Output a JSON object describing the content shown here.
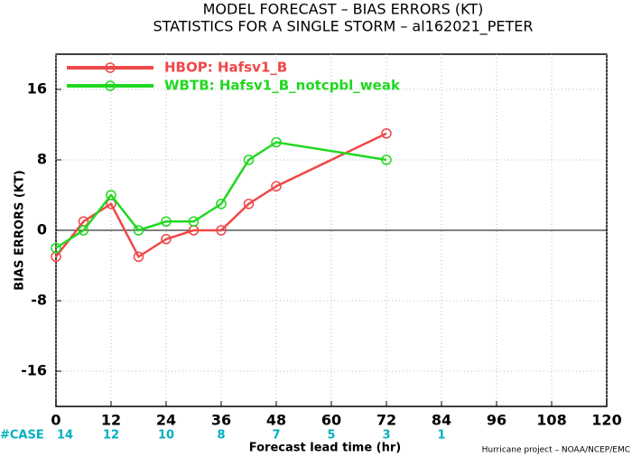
{
  "chart_data": {
    "type": "line",
    "title": "MODEL FORECAST – BIAS ERRORS (KT)",
    "subtitle": "STATISTICS FOR A SINGLE STORM – al162021_PETER",
    "x_label": "Forecast lead time (hr)",
    "y_label": "BIAS ERRORS (KT)",
    "footer": "Hurricane project – NOAA/NCEP/EMC",
    "x": [
      0,
      6,
      12,
      18,
      24,
      30,
      36,
      42,
      48,
      72
    ],
    "series": [
      {
        "name": "HBOP: Hafsv1_B",
        "color": "#f04848",
        "values": [
          -3,
          1,
          3,
          -3,
          -1,
          0,
          0,
          3,
          5,
          11
        ]
      },
      {
        "name": "WBTB: Hafsv1_B_notcpbl_weak",
        "color": "#20d820",
        "values": [
          -2,
          0,
          4,
          0,
          1,
          1,
          3,
          8,
          10,
          8
        ]
      }
    ],
    "case_counts": {
      "label": "#CASE",
      "x": [
        0,
        12,
        24,
        36,
        48,
        60,
        72,
        84
      ],
      "values": [
        14,
        12,
        10,
        8,
        7,
        5,
        3,
        1
      ]
    },
    "xlim": [
      0,
      120
    ],
    "xticks": [
      0,
      12,
      24,
      36,
      48,
      60,
      72,
      84,
      96,
      108,
      120
    ],
    "ylim": [
      -20,
      20
    ],
    "yticks": [
      -16,
      -8,
      0,
      8,
      16
    ],
    "grid": true,
    "legend": "upper left"
  }
}
